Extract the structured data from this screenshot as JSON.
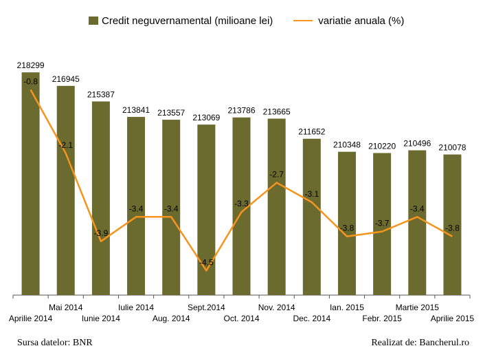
{
  "chart_data": {
    "type": "bar",
    "categories": [
      "Aprilie 2014",
      "Mai 2014",
      "Iunie 2014",
      "Iulie 2014",
      "Aug. 2014",
      "Sept.2014",
      "Oct. 2014",
      "Nov. 2014",
      "Dec. 2014",
      "Ian. 2015",
      "Febr. 2015",
      "Martie 2015",
      "Aprilie 2015"
    ],
    "series": [
      {
        "name": "Credit neguvernamental (milioane lei)",
        "type": "bar",
        "color": "#6b6a2f",
        "values": [
          218299,
          216945,
          215387,
          213841,
          213557,
          213069,
          213786,
          213665,
          211652,
          210348,
          210220,
          210496,
          210078
        ]
      },
      {
        "name": "variatie anuala (%)",
        "type": "line",
        "color": "#f7941d",
        "values": [
          -0.8,
          -2.1,
          -3.9,
          -3.4,
          -3.4,
          -4.5,
          -3.3,
          -2.7,
          -3.1,
          -3.8,
          -3.7,
          -3.4,
          -3.8
        ]
      }
    ],
    "value_labels": {
      "bars": [
        "218299",
        "216945",
        "215387",
        "213841",
        "213557",
        "213069",
        "213786",
        "213665",
        "211652",
        "210348",
        "210220",
        "210496",
        "210078"
      ],
      "line": [
        "-0.8",
        "-2.1",
        "-3.9",
        "-3.4",
        "-3.4",
        "-4.5",
        "-3.3",
        "-2.7",
        "-3.1",
        "-3.8",
        "-3.7",
        "-3.4",
        "-3.8"
      ]
    },
    "title": "",
    "xlabel": "",
    "ylabel": "",
    "ylim_bars": [
      196000,
      219000
    ],
    "ylim_line": [
      -5.0,
      -0.3
    ],
    "grid": false,
    "legend_position": "top"
  },
  "legend": {
    "bar_label": "Credit neguvernamental (milioane lei)",
    "line_label": "variatie anuala (%)"
  },
  "footer": {
    "source": "Sursa datelor: BNR",
    "credit": "Realizat de: Bancherul.ro"
  }
}
